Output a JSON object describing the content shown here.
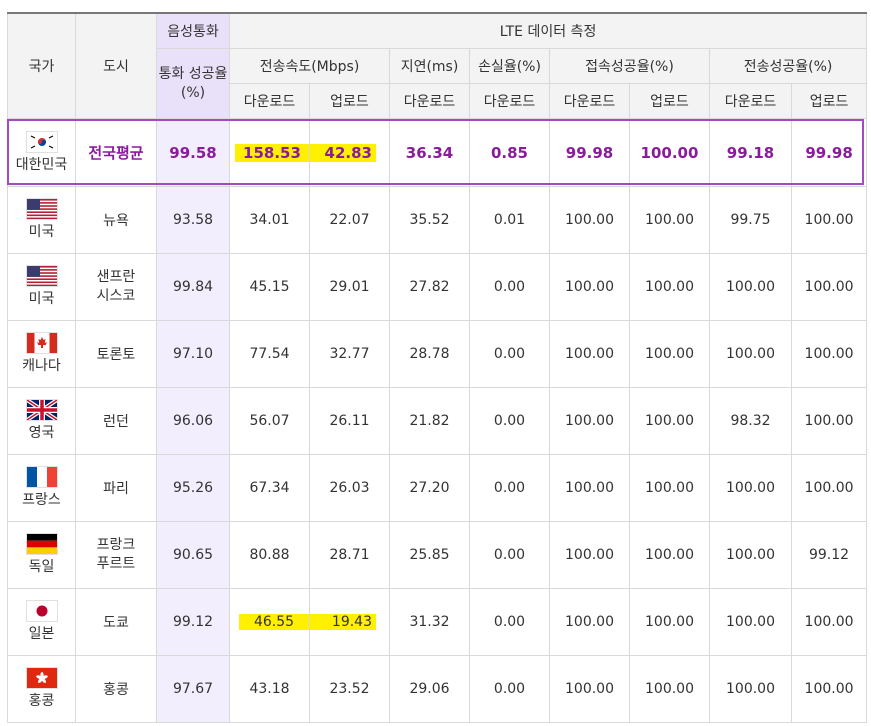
{
  "header": {
    "country": "국가",
    "city": "도시",
    "voice_group": "음성통화",
    "voice_success": "통화 성공율 (%)",
    "lte_group": "LTE 데이터 측정",
    "speed": "전송속도(Mbps)",
    "latency": "지연(ms)",
    "loss": "손실율(%)",
    "connect": "접속성공율(%)",
    "transfer": "전송성공율(%)",
    "download": "다운로드",
    "upload": "업로드"
  },
  "rows": [
    {
      "country": "대한민국",
      "flag": "korea-flag-icon",
      "city": "전국평균",
      "voice": "99.58",
      "dl": "158.53",
      "ul": "42.83",
      "latency": "36.34",
      "loss": "0.85",
      "conn_dl": "99.98",
      "conn_ul": "100.00",
      "trans_dl": "99.18",
      "trans_ul": "99.98"
    },
    {
      "country": "미국",
      "flag": "usa-flag-icon",
      "city": "뉴욕",
      "voice": "93.58",
      "dl": "34.01",
      "ul": "22.07",
      "latency": "35.52",
      "loss": "0.01",
      "conn_dl": "100.00",
      "conn_ul": "100.00",
      "trans_dl": "99.75",
      "trans_ul": "100.00"
    },
    {
      "country": "미국",
      "flag": "usa-flag-icon",
      "city": "샌프란 시스코",
      "voice": "99.84",
      "dl": "45.15",
      "ul": "29.01",
      "latency": "27.82",
      "loss": "0.00",
      "conn_dl": "100.00",
      "conn_ul": "100.00",
      "trans_dl": "100.00",
      "trans_ul": "100.00"
    },
    {
      "country": "캐나다",
      "flag": "canada-flag-icon",
      "city": "토론토",
      "voice": "97.10",
      "dl": "77.54",
      "ul": "32.77",
      "latency": "28.78",
      "loss": "0.00",
      "conn_dl": "100.00",
      "conn_ul": "100.00",
      "trans_dl": "100.00",
      "trans_ul": "100.00"
    },
    {
      "country": "영국",
      "flag": "uk-flag-icon",
      "city": "런던",
      "voice": "96.06",
      "dl": "56.07",
      "ul": "26.11",
      "latency": "21.82",
      "loss": "0.00",
      "conn_dl": "100.00",
      "conn_ul": "100.00",
      "trans_dl": "98.32",
      "trans_ul": "100.00"
    },
    {
      "country": "프랑스",
      "flag": "france-flag-icon",
      "city": "파리",
      "voice": "95.26",
      "dl": "67.34",
      "ul": "26.03",
      "latency": "27.20",
      "loss": "0.00",
      "conn_dl": "100.00",
      "conn_ul": "100.00",
      "trans_dl": "100.00",
      "trans_ul": "100.00"
    },
    {
      "country": "독일",
      "flag": "germany-flag-icon",
      "city": "프랑크 푸르트",
      "voice": "90.65",
      "dl": "80.88",
      "ul": "28.71",
      "latency": "25.85",
      "loss": "0.00",
      "conn_dl": "100.00",
      "conn_ul": "100.00",
      "trans_dl": "100.00",
      "trans_ul": "99.12"
    },
    {
      "country": "일본",
      "flag": "japan-flag-icon",
      "city": "도쿄",
      "voice": "99.12",
      "dl": "46.55",
      "ul": "19.43",
      "latency": "31.32",
      "loss": "0.00",
      "conn_dl": "100.00",
      "conn_ul": "100.00",
      "trans_dl": "100.00",
      "trans_ul": "100.00"
    },
    {
      "country": "홍콩",
      "flag": "hongkong-flag-icon",
      "city": "홍콩",
      "voice": "97.67",
      "dl": "43.18",
      "ul": "23.52",
      "latency": "29.06",
      "loss": "0.00",
      "conn_dl": "100.00",
      "conn_ul": "100.00",
      "trans_dl": "100.00",
      "trans_ul": "100.00"
    }
  ],
  "colors": {
    "accent": "#8a1b9c",
    "frame": "#a14bc1",
    "highlight": "#fff000",
    "voice_col": "#f3eefe"
  }
}
